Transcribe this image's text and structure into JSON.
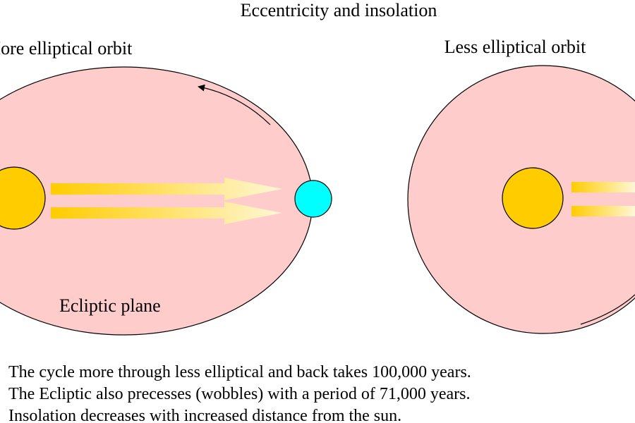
{
  "title": "Eccentricity and insolation",
  "orbits": [
    {
      "label": "More elliptical orbit",
      "plane_label": "Ecliptic plane"
    },
    {
      "label": "Less elliptical orbit"
    }
  ],
  "notes": [
    "The cycle more through less elliptical and back takes 100,000 years.",
    "The Ecliptic also precesses (wobbles) with a period of 71,000 years.",
    "Insolation decreases with increased distance from the sun."
  ]
}
